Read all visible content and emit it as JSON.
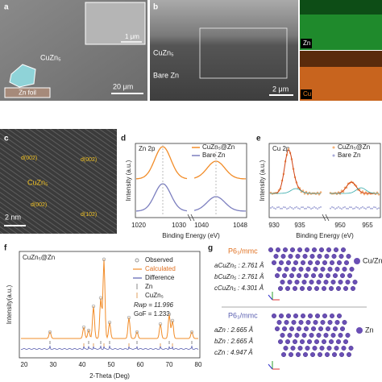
{
  "panels": {
    "a": {
      "letter": "a",
      "phase": "CuZn₅",
      "substrate": "Zn foil",
      "scale_main": "20 μm",
      "scale_inset": "1 μm"
    },
    "b": {
      "letter": "b",
      "layer_top": "CuZn₅",
      "layer_bottom": "Bare Zn",
      "scale": "2 μm",
      "map_zn": "Zn",
      "map_cu": "Cu"
    },
    "c": {
      "letter": "c",
      "phase": "CuZn₅",
      "scale": "2 nm",
      "planes": [
        "d(002)",
        "d(002)",
        "d(002)",
        "d(102)"
      ]
    },
    "d": {
      "letter": "d",
      "title": "Zn 2p",
      "legend": [
        "CuZn₅@Zn",
        "Bare Zn"
      ],
      "x_label": "Binding Energy (eV)",
      "y_label": "Intensity (a.u.)",
      "x_ticks": [
        "1020",
        "1030",
        "1040",
        "1048"
      ]
    },
    "e": {
      "letter": "e",
      "title": "Cu 2p",
      "legend": [
        "CuZn₅@Zn",
        "Bare Zn"
      ],
      "x_label": "Binding Energy (eV)",
      "y_label": "Intensity (a.u.)",
      "x_ticks": [
        "930",
        "935",
        "950",
        "955"
      ]
    },
    "f": {
      "letter": "f",
      "title": "CuZn₅@Zn",
      "legend": [
        "Observed",
        "Calculated",
        "Difference",
        "Zn",
        "CuZn₅"
      ],
      "rwp": "Rwp = 11.996",
      "gof": "GoF = 1.233",
      "x_label": "2-Theta (Deg)",
      "y_label": "Intensity(a.u.)",
      "x_ticks": [
        "20",
        "30",
        "40",
        "50",
        "60",
        "70",
        "80"
      ]
    },
    "g": {
      "letter": "g",
      "top": {
        "space_group": "P6₃/mmc",
        "params": [
          "aCuZn₅ : 2.761 Å",
          "bCuZn₅ : 2.761 Å",
          "cCuZn₅ : 4.301 Å"
        ],
        "legend": "Cu/Zn"
      },
      "bottom": {
        "space_group": "P6₃/mmc",
        "params": [
          "aZn : 2.665 Å",
          "bZn : 2.665 Å",
          "cZn : 4.947 Å"
        ],
        "legend": "Zn"
      }
    }
  }
}
